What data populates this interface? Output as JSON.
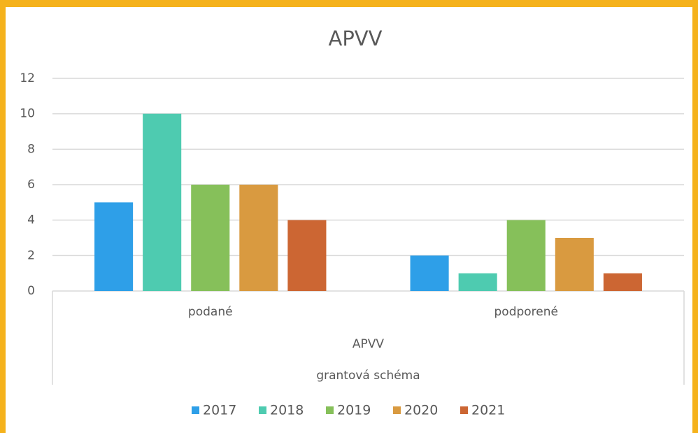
{
  "chart_data": {
    "type": "bar",
    "title": "APVV",
    "categories": [
      "podané",
      "podporené"
    ],
    "category_groups": [
      "APVV",
      "grantová schéma"
    ],
    "series": [
      {
        "name": "2017",
        "color": "#2e9fe8",
        "values": [
          5,
          2
        ]
      },
      {
        "name": "2018",
        "color": "#4ecbb0",
        "values": [
          10,
          1
        ]
      },
      {
        "name": "2019",
        "color": "#86c05a",
        "values": [
          6,
          4
        ]
      },
      {
        "name": "2020",
        "color": "#d99a40",
        "values": [
          6,
          3
        ]
      },
      {
        "name": "2021",
        "color": "#cc6633",
        "values": [
          4,
          1
        ]
      }
    ],
    "ylim": [
      0,
      12
    ],
    "yticks": [
      0,
      2,
      4,
      6,
      8,
      10,
      12
    ],
    "grid": true,
    "legend": "bottom"
  }
}
